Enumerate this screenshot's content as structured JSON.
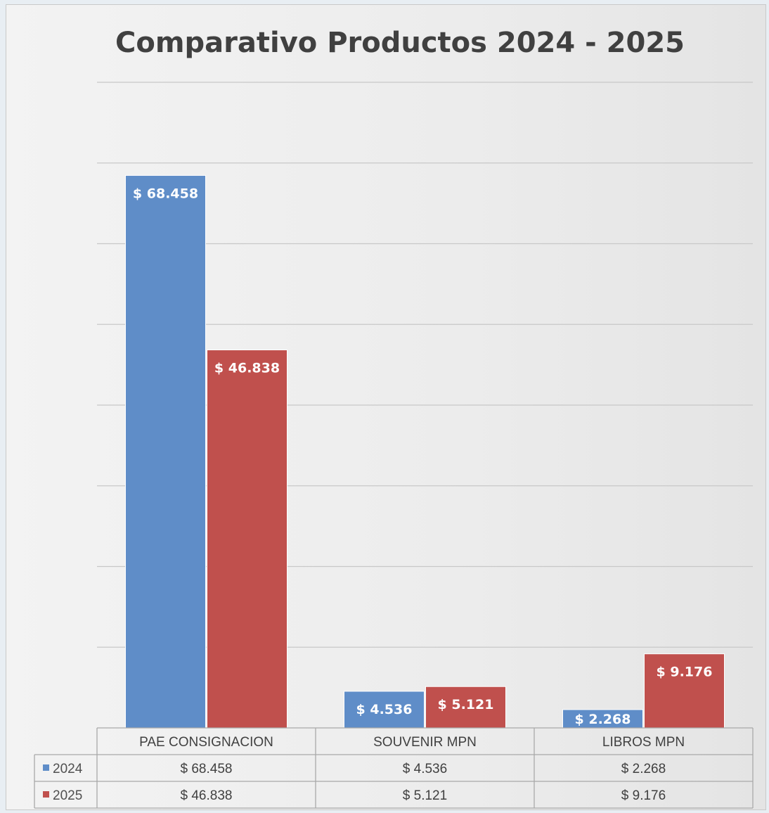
{
  "chart_data": {
    "type": "bar",
    "title": "Comparativo Productos 2024 - 2025",
    "categories": [
      "PAE CONSIGNACION",
      "SOUVENIR MPN",
      "LIBROS MPN"
    ],
    "series": [
      {
        "name": "2024",
        "color": "#5f8dc8",
        "values": [
          68458,
          4536,
          2268
        ],
        "labels": [
          "$ 68.458",
          "$ 4.536",
          "$ 2.268"
        ]
      },
      {
        "name": "2025",
        "color": "#c0504d",
        "values": [
          46838,
          5121,
          9176
        ],
        "labels": [
          "$ 46.838",
          "$ 5.121",
          "$ 9.176"
        ]
      }
    ],
    "ylim": [
      0,
      80000
    ],
    "gridlines": true,
    "y_tick_labels_shown": false,
    "legend": "data-table"
  }
}
